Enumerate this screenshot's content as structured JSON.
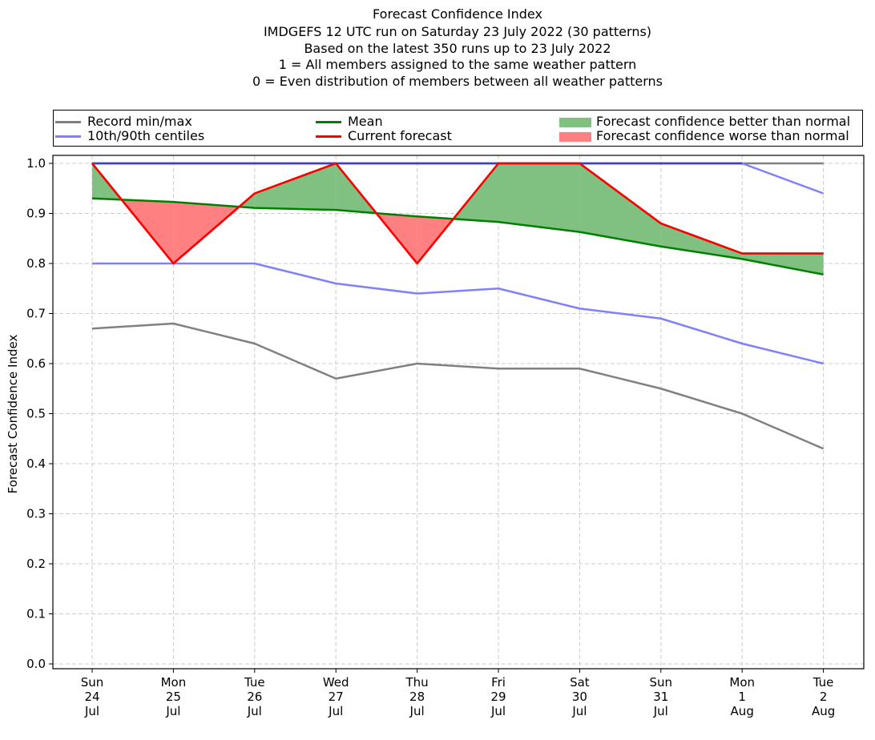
{
  "title_lines": [
    "Forecast Confidence Index",
    "IMDGEFS 12 UTC run on Saturday 23 July 2022 (30 patterns)",
    "Based on the latest 350 runs up to 23 July 2022",
    "1 = All members assigned to the same weather pattern",
    "0 = Even distribution of members between all weather patterns"
  ],
  "legend": {
    "record": "Record min/max",
    "centiles": "10th/90th centiles",
    "mean": "Mean",
    "current": "Current forecast",
    "better": "Forecast confidence better than normal",
    "worse": "Forecast confidence worse than normal"
  },
  "colors": {
    "record": "#808080",
    "centiles": "#8080ff",
    "mean": "#008000",
    "current": "#ff0000",
    "better": "#80c080",
    "worse": "#ff8080",
    "grid": "#cccccc",
    "top_line": "#4040c0"
  },
  "chart_data": {
    "type": "line",
    "ylabel": "Forecast Confidence Index",
    "ylim": [
      0.0,
      1.0
    ],
    "yticks": [
      "0.0",
      "0.1",
      "0.2",
      "0.3",
      "0.4",
      "0.5",
      "0.6",
      "0.7",
      "0.8",
      "0.9",
      "1.0"
    ],
    "grid": true,
    "legend_position": "top",
    "categories": [
      [
        "Sun",
        "24",
        "Jul"
      ],
      [
        "Mon",
        "25",
        "Jul"
      ],
      [
        "Tue",
        "26",
        "Jul"
      ],
      [
        "Wed",
        "27",
        "Jul"
      ],
      [
        "Thu",
        "28",
        "Jul"
      ],
      [
        "Fri",
        "29",
        "Jul"
      ],
      [
        "Sat",
        "30",
        "Jul"
      ],
      [
        "Sun",
        "31",
        "Jul"
      ],
      [
        "Mon",
        "1",
        "Aug"
      ],
      [
        "Tue",
        "2",
        "Aug"
      ]
    ],
    "series": [
      {
        "key": "record_max",
        "legend": "record",
        "values": [
          1.0,
          1.0,
          1.0,
          1.0,
          1.0,
          1.0,
          1.0,
          1.0,
          1.0,
          1.0
        ]
      },
      {
        "key": "record_min",
        "legend": "record",
        "values": [
          0.67,
          0.68,
          0.64,
          0.57,
          0.6,
          0.59,
          0.59,
          0.55,
          0.5,
          0.43
        ]
      },
      {
        "key": "p90",
        "legend": "centiles",
        "values": [
          1.0,
          1.0,
          1.0,
          1.0,
          1.0,
          1.0,
          1.0,
          1.0,
          1.0,
          0.94
        ]
      },
      {
        "key": "p10",
        "legend": "centiles",
        "values": [
          0.8,
          0.8,
          0.8,
          0.76,
          0.74,
          0.75,
          0.71,
          0.69,
          0.64,
          0.6
        ]
      },
      {
        "key": "mean",
        "legend": "mean",
        "values": [
          0.93,
          0.923,
          0.911,
          0.907,
          0.894,
          0.883,
          0.863,
          0.834,
          0.809,
          0.778
        ]
      },
      {
        "key": "current",
        "legend": "current",
        "values": [
          1.0,
          0.8,
          0.94,
          1.0,
          0.8,
          1.0,
          1.0,
          0.88,
          0.82,
          0.82
        ]
      }
    ]
  }
}
